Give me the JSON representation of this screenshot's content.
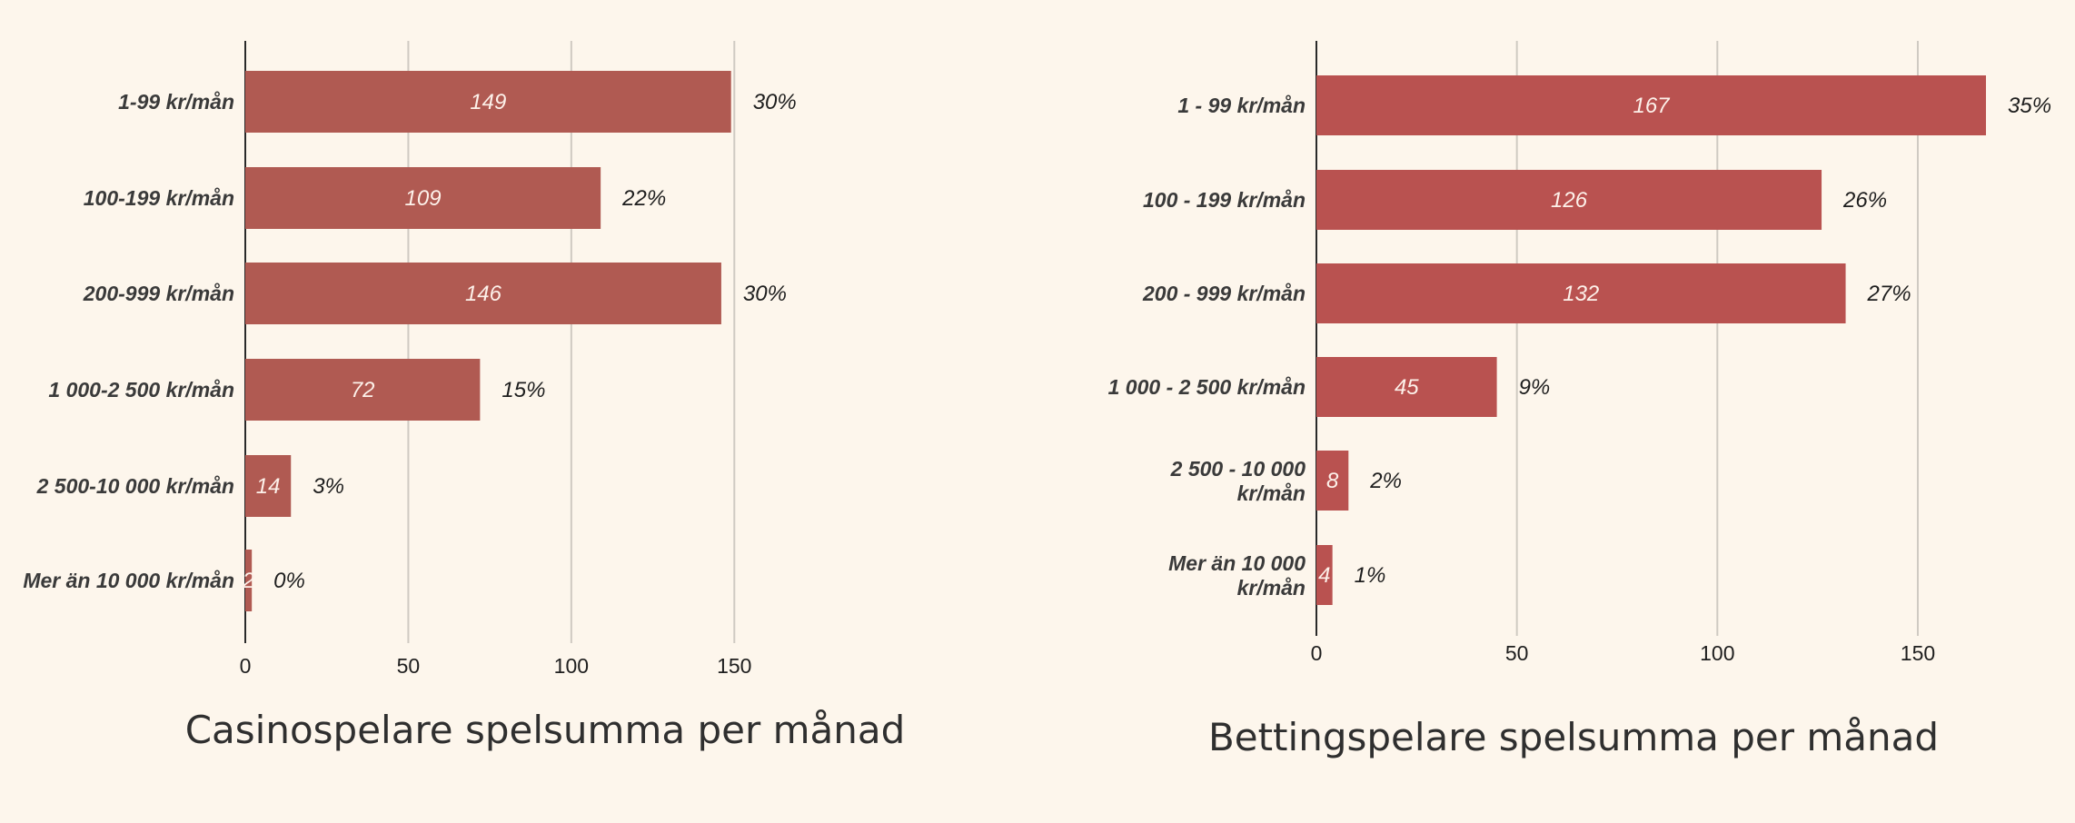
{
  "chart_data": [
    {
      "type": "bar",
      "orientation": "horizontal",
      "title": "Casinospelare spelsumma per månad",
      "categories": [
        "1-99 kr/mån",
        "100-199 kr/mån",
        "200-999 kr/mån",
        "1 000-2 500 kr/mån",
        "2 500-10 000 kr/mån",
        "Mer än 10 000 kr/mån"
      ],
      "values": [
        149,
        109,
        146,
        72,
        14,
        2
      ],
      "percent_labels": [
        "30%",
        "22%",
        "30%",
        "15%",
        "3%",
        "0%"
      ],
      "xlim": [
        0,
        160
      ],
      "xticks": [
        0,
        50,
        100,
        150
      ],
      "grid": true,
      "bar_color": "#b05a52"
    },
    {
      "type": "bar",
      "orientation": "horizontal",
      "title": "Bettingspelare spelsumma per månad",
      "categories": [
        "1 - 99 kr/mån",
        "100 - 199 kr/mån",
        "200 - 999 kr/mån",
        "1 000 - 2 500 kr/mån",
        "2 500 - 10 000 kr/mån",
        "Mer än 10 000 kr/mån"
      ],
      "values": [
        167,
        126,
        132,
        45,
        8,
        4
      ],
      "percent_labels": [
        "35%",
        "26%",
        "27%",
        "9%",
        "2%",
        "1%"
      ],
      "xlim": [
        0,
        175
      ],
      "xticks": [
        0,
        50,
        100,
        150
      ],
      "grid": true,
      "bar_color": "#b95250"
    }
  ]
}
